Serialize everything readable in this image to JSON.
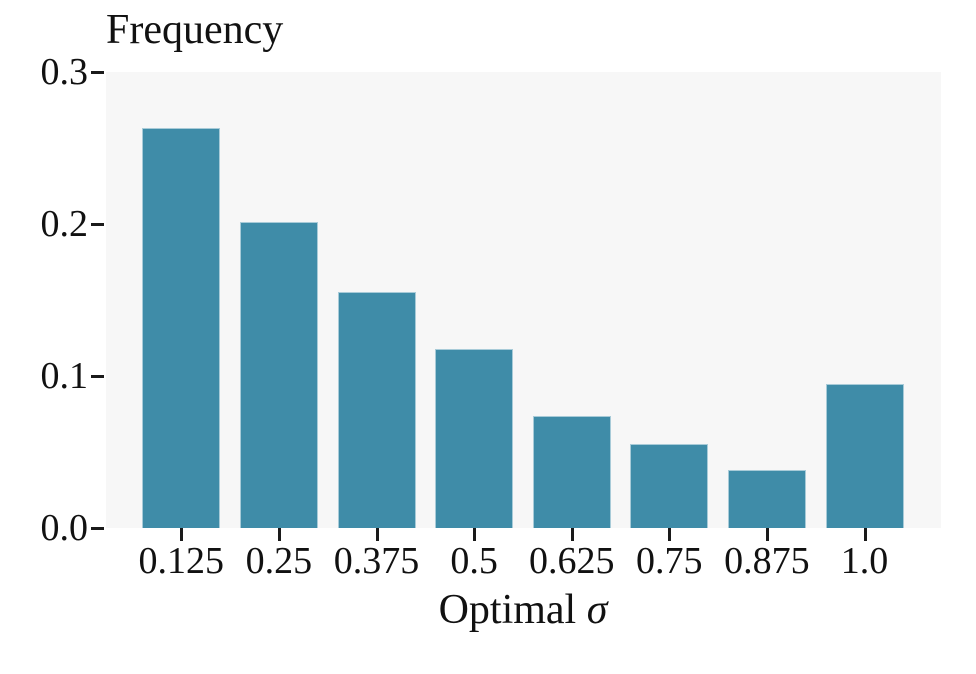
{
  "chart_data": {
    "type": "bar",
    "title": "",
    "ylabel": "Frequency",
    "xlabel": "Optimal σ",
    "xlabel_main": "Optimal",
    "xlabel_symbol": "σ",
    "categories": [
      "0.125",
      "0.25",
      "0.375",
      "0.5",
      "0.625",
      "0.75",
      "0.875",
      "1.0"
    ],
    "values": [
      0.263,
      0.201,
      0.155,
      0.118,
      0.074,
      0.055,
      0.038,
      0.095
    ],
    "ylim": [
      0,
      0.3
    ],
    "ytick_labels": [
      "0.0",
      "0.1",
      "0.2",
      "0.3"
    ],
    "ytick_values": [
      0,
      0.1,
      0.2,
      0.3
    ],
    "grid": false,
    "legend": "none",
    "bar_color": "#3f8ca8",
    "plot_background": "#f7f7f7",
    "figure_background": "#ffffff",
    "text_color": "#111111"
  }
}
